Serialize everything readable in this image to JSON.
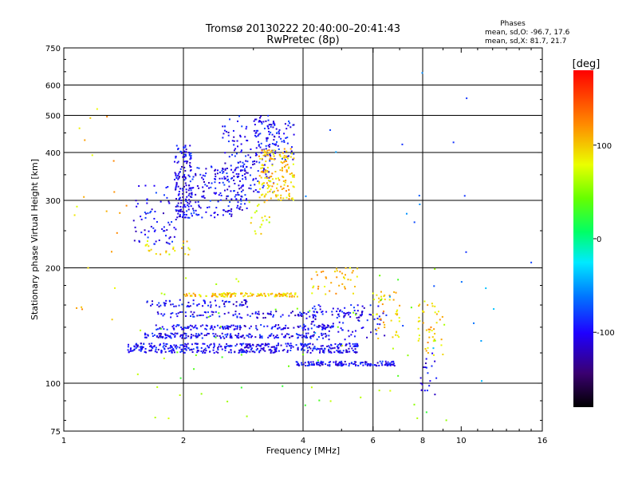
{
  "chart_data": {
    "type": "scatter",
    "title": "Tromsø 20130222 20:40:00–20:41:43",
    "subtitle": "RwPretec (8p)",
    "xlabel": "Frequency [MHz]",
    "ylabel": "Stationary phase Virtual Height [km]",
    "x_scale": "log",
    "y_scale": "log",
    "xlim": [
      1,
      16
    ],
    "ylim": [
      75,
      750
    ],
    "x_ticks": [
      1,
      2,
      4,
      6,
      8,
      10,
      16
    ],
    "x_tick_labels": [
      "1",
      "2",
      "4",
      "6",
      "8",
      "10",
      "16"
    ],
    "y_ticks": [
      75,
      100,
      200,
      300,
      400,
      500,
      600,
      750
    ],
    "y_tick_labels": [
      "75",
      "100",
      "200",
      "300",
      "400",
      "500",
      "600",
      "750"
    ],
    "x_gridlines": [
      2,
      4,
      6,
      8
    ],
    "y_gridlines": [
      100,
      200,
      300,
      400,
      500,
      600
    ],
    "stats": {
      "heading": "Phases",
      "line1": "mean, sd,O: -96.7, 17.6",
      "line2": "mean, sd,X:  81.7, 21.7"
    },
    "colorbar": {
      "label": "[deg]",
      "range": [
        -180,
        180
      ],
      "ticks": [
        100,
        0,
        -100
      ],
      "tick_labels": [
        "100",
        "0",
        "-100"
      ]
    },
    "series": [
      {
        "clusters": [
          {
            "x": [
              1.9,
              2.1
            ],
            "y": [
              270,
              420
            ],
            "phase": -100,
            "n": 160
          },
          {
            "x": [
              1.5,
              1.95
            ],
            "y": [
              230,
              330
            ],
            "phase": -100,
            "n": 70
          },
          {
            "x": [
              2.1,
              2.9
            ],
            "y": [
              270,
              370
            ],
            "phase": -100,
            "n": 170
          },
          {
            "x": [
              2.5,
              3.4
            ],
            "y": [
              310,
              500
            ],
            "phase": -100,
            "n": 140
          },
          {
            "x": [
              3.0,
              3.8
            ],
            "y": [
              380,
              490
            ],
            "phase": -95,
            "n": 90
          },
          {
            "x": [
              3.1,
              3.8
            ],
            "y": [
              300,
              410
            ],
            "phase": 100,
            "n": 160
          },
          {
            "x": [
              2.9,
              3.3
            ],
            "y": [
              245,
              300
            ],
            "phase": 80,
            "n": 20
          },
          {
            "x": [
              1.55,
              2.1
            ],
            "y": [
              215,
              235
            ],
            "phase": 90,
            "n": 25
          },
          {
            "x": [
              1.45,
              5.5
            ],
            "y": [
              120,
              127
            ],
            "phase": -100,
            "n": 420
          },
          {
            "x": [
              1.6,
              4.6
            ],
            "y": [
              131,
              135
            ],
            "phase": -100,
            "n": 180
          },
          {
            "x": [
              1.7,
              4.8
            ],
            "y": [
              138,
              142
            ],
            "phase": -100,
            "n": 140
          },
          {
            "x": [
              1.7,
              6.0
            ],
            "y": [
              148,
              154
            ],
            "phase": -100,
            "n": 120
          },
          {
            "x": [
              2.0,
              3.9
            ],
            "y": [
              168,
              172
            ],
            "phase": 100,
            "n": 130
          },
          {
            "x": [
              1.6,
              2.9
            ],
            "y": [
              158,
              165
            ],
            "phase": -100,
            "n": 70
          },
          {
            "x": [
              3.8,
              6.8
            ],
            "y": [
              111,
              114
            ],
            "phase": -100,
            "n": 140
          },
          {
            "x": [
              4.0,
              6.5
            ],
            "y": [
              130,
              160
            ],
            "phase": -100,
            "n": 90
          },
          {
            "x": [
              4.2,
              5.5
            ],
            "y": [
              170,
              200
            ],
            "phase": 100,
            "n": 40
          },
          {
            "x": [
              6.0,
              7.0
            ],
            "y": [
              130,
              175
            ],
            "phase": 100,
            "n": 45
          },
          {
            "x": [
              7.8,
              9.0
            ],
            "y": [
              118,
              165
            ],
            "phase": 100,
            "n": 45
          },
          {
            "x": [
              7.9,
              8.7
            ],
            "y": [
              92,
              120
            ],
            "phase": -100,
            "n": 20
          },
          {
            "x": [
              1.05,
              1.45
            ],
            "y": [
              140,
              560
            ],
            "phase": 100,
            "n": 22
          },
          {
            "x": [
              1.5,
              9.5
            ],
            "y": [
              80,
              200
            ],
            "phase": 50,
            "n": 60
          },
          {
            "x": [
              4.0,
              15.5
            ],
            "y": [
              100,
              650
            ],
            "phase": -60,
            "n": 25
          }
        ]
      }
    ]
  }
}
